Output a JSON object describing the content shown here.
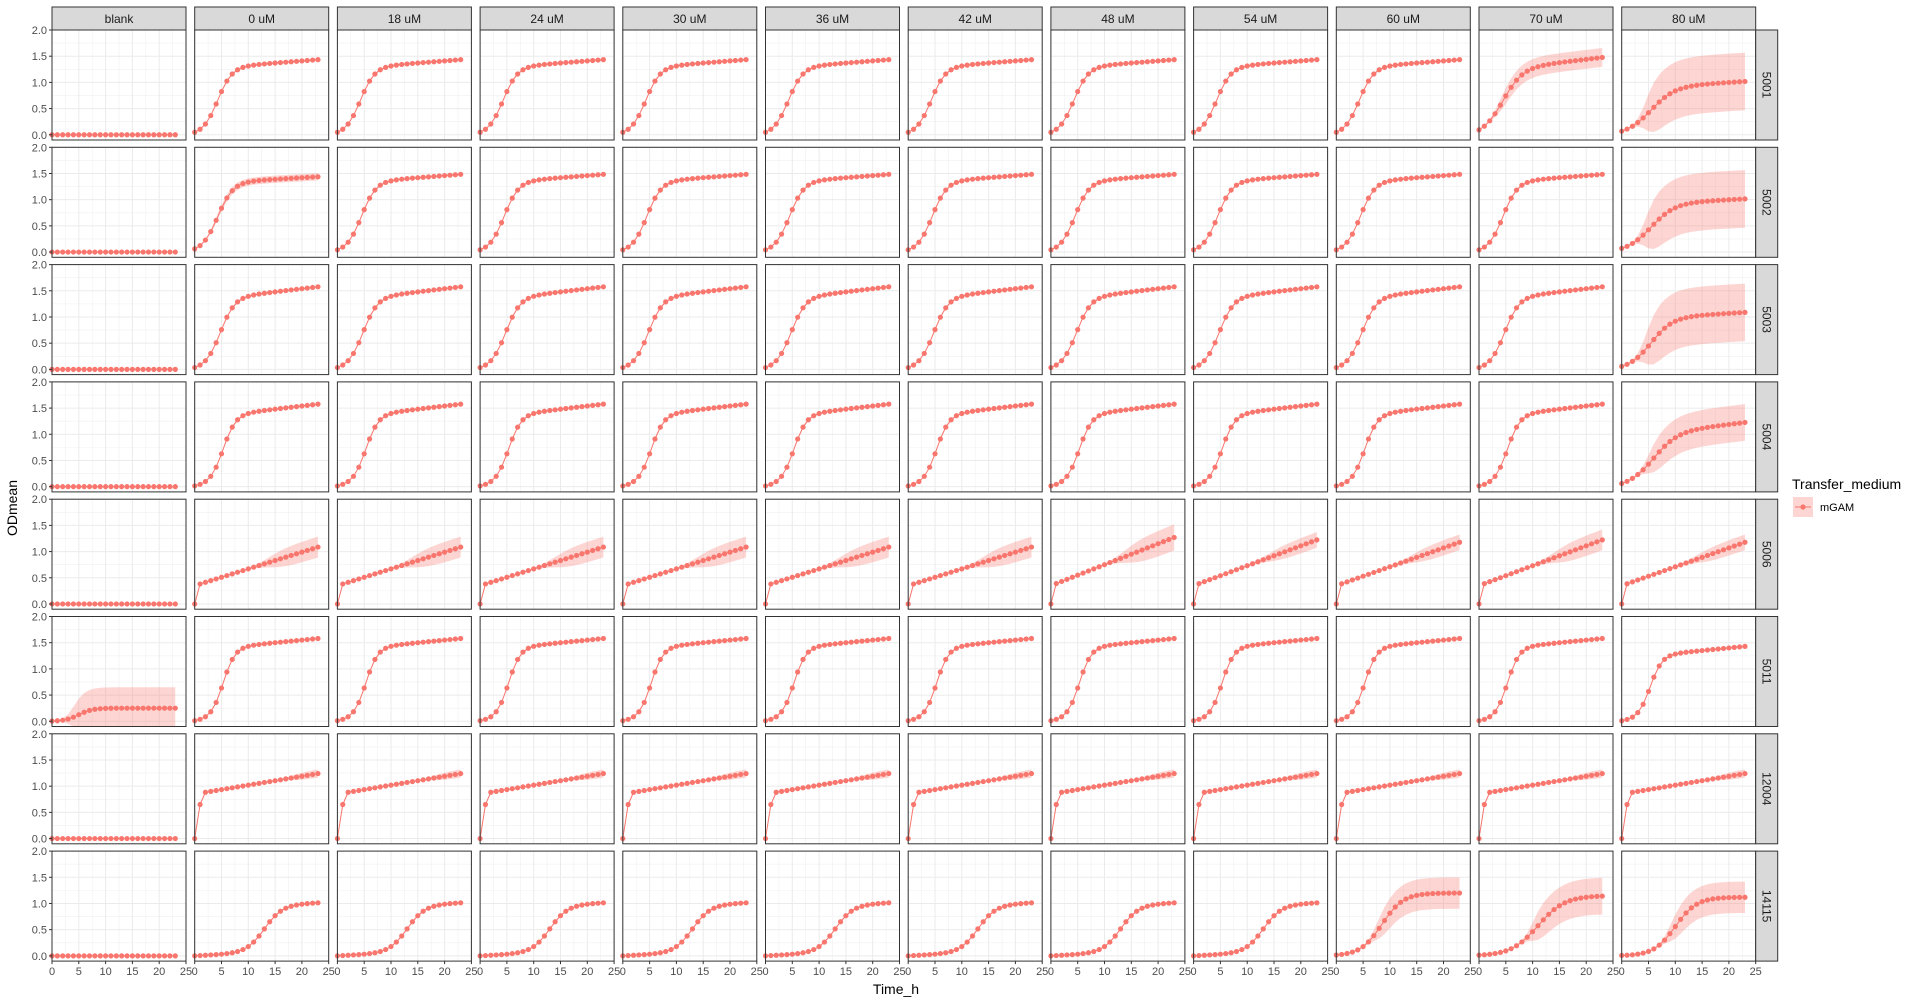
{
  "chart_data": {
    "type": "line",
    "layout": "facet_grid",
    "xlabel": "Time_h",
    "ylabel": "ODmean",
    "x_ticks": [
      0,
      5,
      10,
      15,
      20,
      25
    ],
    "y_ticks": [
      0.0,
      0.5,
      1.0,
      1.5,
      2.0
    ],
    "y_tick_labels": [
      "0.0",
      "0.5",
      "1.0",
      "1.5",
      "2.0"
    ],
    "xlim": [
      0,
      25
    ],
    "ylim": [
      -0.1,
      2.0
    ],
    "grid": true,
    "column_facets": [
      "blank",
      "0 uM",
      "18 uM",
      "24 uM",
      "30 uM",
      "36 uM",
      "42 uM",
      "48 uM",
      "54 uM",
      "60 uM",
      "70 uM",
      "80 uM"
    ],
    "row_facets": [
      "5001",
      "5002",
      "5003",
      "5004",
      "5006",
      "5011",
      "12004",
      "14115"
    ],
    "legend": {
      "title": "Transfer_medium",
      "position": "right",
      "entries": [
        {
          "label": "mGAM",
          "color": "#F8766D"
        }
      ]
    },
    "series_color": "#F8766D",
    "ribbon_color": "#F8766D",
    "curve_params": {
      "5001": {
        "default": {
          "model": "logistic",
          "K": 1.25,
          "r": 0.75,
          "t0": 4.3,
          "slope": 0.008,
          "ribbon": 0.02
        },
        "blank": {
          "model": "flat"
        },
        "70 uM": {
          "model": "logistic",
          "K": 1.2,
          "r": 0.55,
          "t0": 4.5,
          "slope": 0.012,
          "ribbon": 0.18
        },
        "80 uM": {
          "model": "logistic",
          "K": 0.88,
          "r": 0.45,
          "t0": 5.5,
          "slope": 0.006,
          "ribbon": 0.55
        }
      },
      "5002": {
        "default": {
          "model": "logistic",
          "K": 1.3,
          "r": 0.75,
          "t0": 4.5,
          "slope": 0.008,
          "ribbon": 0.02
        },
        "blank": {
          "model": "flat"
        },
        "0 uM": {
          "model": "logistic",
          "K": 1.3,
          "r": 0.7,
          "t0": 4.3,
          "slope": 0.006,
          "ribbon": 0.07
        },
        "80 uM": {
          "model": "logistic",
          "K": 0.9,
          "r": 0.45,
          "t0": 5.5,
          "slope": 0.005,
          "ribbon": 0.55
        }
      },
      "5003": {
        "default": {
          "model": "logistic",
          "K": 1.3,
          "r": 0.75,
          "t0": 4.8,
          "slope": 0.012,
          "ribbon": 0.02
        },
        "blank": {
          "model": "flat"
        },
        "80 uM": {
          "model": "logistic",
          "K": 0.95,
          "r": 0.5,
          "t0": 5.5,
          "slope": 0.006,
          "ribbon": 0.55
        }
      },
      "5004": {
        "default": {
          "model": "logistic",
          "K": 1.3,
          "r": 0.85,
          "t0": 5.3,
          "slope": 0.012,
          "ribbon": 0.02
        },
        "blank": {
          "model": "flat"
        },
        "80 uM": {
          "model": "logistic",
          "K": 0.95,
          "r": 0.45,
          "t0": 6.0,
          "slope": 0.012,
          "ribbon": 0.35
        }
      },
      "5006": {
        "default": {
          "model": "linear",
          "a": 0.35,
          "b": 0.032,
          "ribbon": 0.2
        },
        "blank": {
          "model": "flat"
        },
        "48 uM": {
          "model": "linear",
          "a": 0.35,
          "b": 0.04,
          "ribbon": 0.25
        },
        "54 uM": {
          "model": "linear",
          "a": 0.35,
          "b": 0.038,
          "ribbon": 0.15
        },
        "60 uM": {
          "model": "linear",
          "a": 0.35,
          "b": 0.036,
          "ribbon": 0.15
        },
        "70 uM": {
          "model": "linear",
          "a": 0.35,
          "b": 0.038,
          "ribbon": 0.2
        },
        "80 uM": {
          "model": "linear",
          "a": 0.35,
          "b": 0.036,
          "ribbon": 0.15
        }
      },
      "5011": {
        "default": {
          "model": "logistic",
          "K": 1.35,
          "r": 0.9,
          "t0": 5.3,
          "slope": 0.01,
          "ribbon": 0.02
        },
        "blank": {
          "model": "logistic",
          "K": 0.25,
          "r": 0.8,
          "t0": 5.0,
          "slope": 0.0,
          "ribbon": 0.4
        },
        "80 uM": {
          "model": "logistic",
          "K": 1.2,
          "r": 0.9,
          "t0": 5.3,
          "slope": 0.01,
          "ribbon": 0.02
        }
      },
      "12004": {
        "default": {
          "model": "jump_linear",
          "a": 0.85,
          "b": 0.017,
          "ribbon": 0.08
        },
        "blank": {
          "model": "flat"
        }
      },
      "14115": {
        "default": {
          "model": "logistic",
          "K": 0.9,
          "r": 0.6,
          "t0": 13.0,
          "slope": 0.005,
          "ribbon": 0.02
        },
        "blank": {
          "model": "flat"
        },
        "60 uM": {
          "model": "logistic",
          "K": 1.2,
          "r": 0.5,
          "t0": 8.5,
          "slope": 0.0,
          "ribbon": 0.3
        },
        "70 uM": {
          "model": "logistic",
          "K": 1.15,
          "r": 0.4,
          "t0": 11.0,
          "slope": 0.0,
          "ribbon": 0.35
        },
        "80 uM": {
          "model": "logistic",
          "K": 1.12,
          "r": 0.5,
          "t0": 10.0,
          "slope": 0.0,
          "ribbon": 0.3
        }
      }
    },
    "time_points": [
      0,
      1,
      2,
      3,
      4,
      5,
      6,
      7,
      8,
      9,
      10,
      11,
      12,
      13,
      14,
      15,
      16,
      17,
      18,
      19,
      20,
      21,
      22,
      23
    ]
  }
}
